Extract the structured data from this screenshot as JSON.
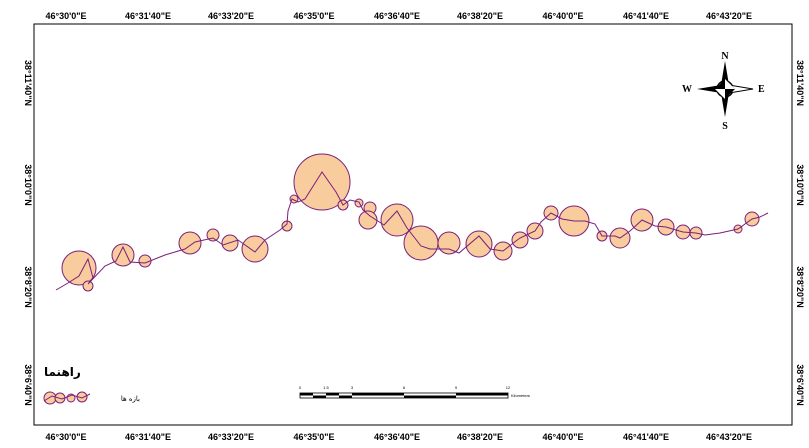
{
  "map": {
    "top_ticks": [
      "46°30'0\"E",
      "46°31'40\"E",
      "46°33'20\"E",
      "46°35'0\"E",
      "46°36'40\"E",
      "46°38'20\"E",
      "46°40'0\"E",
      "46°41'40\"E",
      "46°43'20\"E"
    ],
    "bottom_ticks": [
      "46°30'0\"E",
      "46°31'40\"E",
      "46°33'20\"E",
      "46°35'0\"E",
      "46°36'40\"E",
      "46°38'20\"E",
      "46°40'0\"E",
      "46°41'40\"E",
      "46°43'20\"E"
    ],
    "left_ticks": [
      "38°11'40\"N",
      "38°10'0\"N",
      "38°8'20\"N",
      "38°6'40\"N"
    ],
    "right_ticks": [
      "38°11'40\"N",
      "38°10'0\"N",
      "38°8'20\"N",
      "38°6'40\"N"
    ],
    "compass": {
      "n": "N",
      "s": "S",
      "e": "E",
      "w": "W"
    },
    "legend": {
      "title": "راهنما",
      "item_label": "بازه ها"
    },
    "scale_bar": {
      "labels": [
        "0",
        "1.5",
        "3",
        "6",
        "9",
        "12"
      ],
      "unit": "Kilometers"
    },
    "colors": {
      "reach_fill": "#f9cc9d",
      "reach_stroke": "#7a1f7a",
      "river_line": "#7a1f7a"
    }
  }
}
